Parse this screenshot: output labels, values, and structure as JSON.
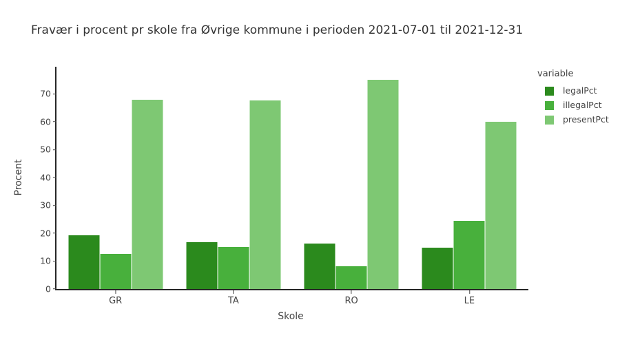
{
  "title": "Fravær i procent pr skole fra Øvrige kommune i perioden 2021-07-01 til 2021-12-31",
  "chart_data": {
    "type": "bar",
    "mode": "grouped",
    "title": "Fravær i procent pr skole fra Øvrige kommune i perioden 2021-07-01 til 2021-12-31",
    "categories": [
      "GR",
      "TA",
      "RO",
      "LE"
    ],
    "series": [
      {
        "name": "legalPct",
        "color": "#2b8a1d",
        "values": [
          19.2,
          16.8,
          16.3,
          14.9
        ]
      },
      {
        "name": "illegalPct",
        "color": "#48b03c",
        "values": [
          12.6,
          15.0,
          8.2,
          24.4
        ]
      },
      {
        "name": "presentPct",
        "color": "#7ec873",
        "values": [
          67.9,
          67.7,
          75.0,
          60.1
        ]
      }
    ],
    "xlabel": "Skole",
    "ylabel": "Procent",
    "yticks": [
      0,
      10,
      20,
      30,
      40,
      50,
      60,
      70
    ],
    "ylim": [
      0,
      79.8
    ],
    "legend_title": "variable",
    "legend_position": "right",
    "grid": false,
    "background": "#ffffff",
    "axis_line_color": "#262626",
    "tick_text_color": "#444444",
    "title_color": "#333333"
  }
}
